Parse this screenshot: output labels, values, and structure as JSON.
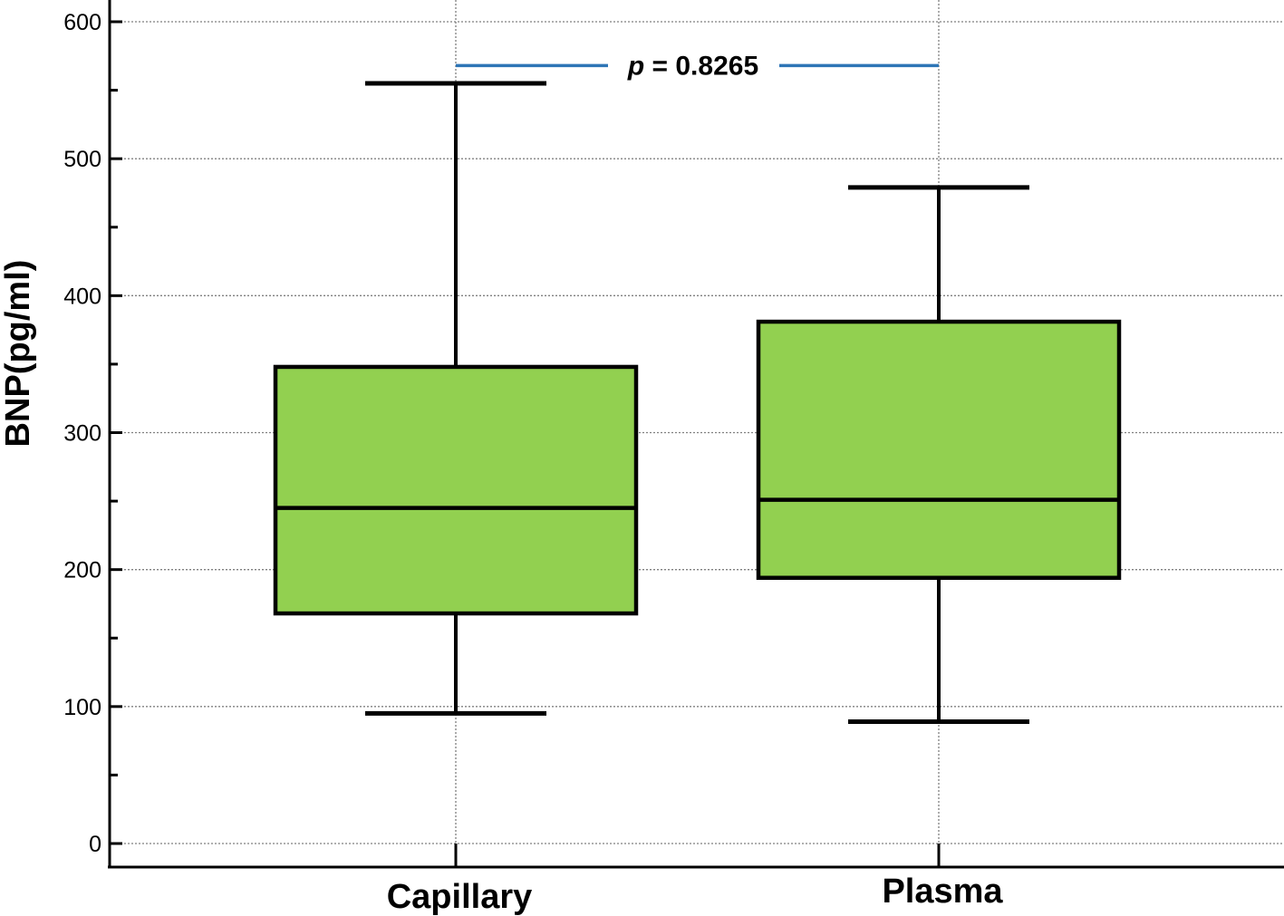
{
  "chart_data": {
    "type": "box",
    "ylabel": "BNP(pg/ml)",
    "xlabel": "",
    "ylim": [
      0,
      600
    ],
    "yticks": [
      0,
      100,
      200,
      300,
      400,
      500,
      600
    ],
    "grid": true,
    "categories": [
      "Capillary",
      "Plasma"
    ],
    "boxes": [
      {
        "category": "Capillary",
        "min": 95,
        "q1": 168,
        "median": 245,
        "q3": 348,
        "max": 555
      },
      {
        "category": "Plasma",
        "min": 89,
        "q1": 194,
        "median": 251,
        "q3": 381,
        "max": 479
      }
    ],
    "annotation": {
      "p_symbol": "p",
      "p_rest": " = 0.8265",
      "value": 0.8265,
      "y": 568
    },
    "colors": {
      "box_fill": "#92d050",
      "box_stroke": "#000000",
      "annotation_line": "#2e75b6",
      "grid": "#808080"
    }
  }
}
